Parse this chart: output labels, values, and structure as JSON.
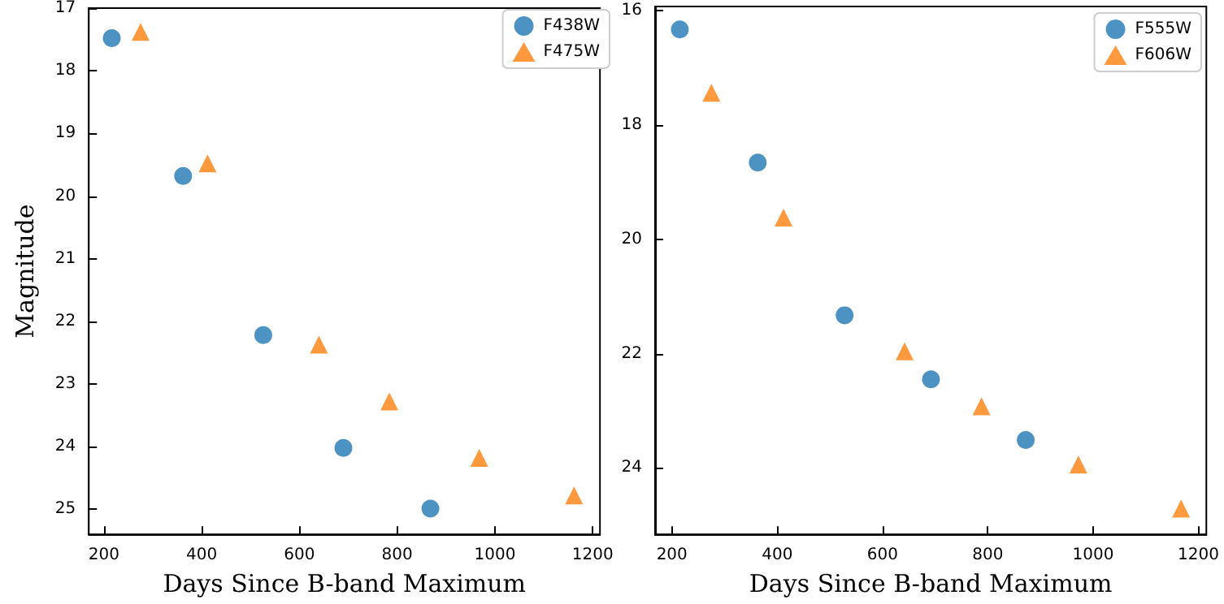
{
  "chart_data": [
    {
      "type": "scatter",
      "xlabel": "Days Since B-band Maximum",
      "ylabel": "Magnitude",
      "xlim": [
        169,
        1215
      ],
      "xticks": [
        200,
        400,
        600,
        800,
        1000,
        1200
      ],
      "ylim": [
        25.4,
        17
      ],
      "yticks": [
        17,
        18,
        19,
        20,
        21,
        22,
        23,
        24,
        25
      ],
      "legend": "top right",
      "grid": false,
      "series": [
        {
          "name": "F438W",
          "color": "#1f77b4",
          "marker": "circle",
          "x": [
            216,
            362,
            526,
            690,
            868
          ],
          "values": [
            17.48,
            19.68,
            22.22,
            24.02,
            24.99
          ]
        },
        {
          "name": "F475W",
          "color": "#ff7f0e",
          "marker": "triangle",
          "x": [
            275,
            412,
            640,
            784,
            968,
            1162
          ],
          "values": [
            17.38,
            19.48,
            22.37,
            23.28,
            24.18,
            24.78
          ]
        }
      ]
    },
    {
      "type": "scatter",
      "xlabel": "Days Since B-band Maximum",
      "xlim": [
        168,
        1215
      ],
      "xticks": [
        200,
        400,
        600,
        800,
        1000,
        1200
      ],
      "ylim": [
        25.16,
        15.93
      ],
      "yticks": [
        16,
        18,
        20,
        22,
        24
      ],
      "legend": "top right",
      "grid": false,
      "series": [
        {
          "name": "F555W",
          "color": "#1f77b4",
          "marker": "circle",
          "x": [
            215,
            363,
            528,
            692,
            872
          ],
          "values": [
            16.33,
            18.66,
            21.33,
            22.45,
            23.51
          ]
        },
        {
          "name": "F606W",
          "color": "#ff7f0e",
          "marker": "triangle",
          "x": [
            275,
            412,
            642,
            788,
            972,
            1167
          ],
          "values": [
            17.44,
            19.62,
            21.96,
            22.92,
            23.94,
            24.71
          ]
        }
      ]
    }
  ]
}
